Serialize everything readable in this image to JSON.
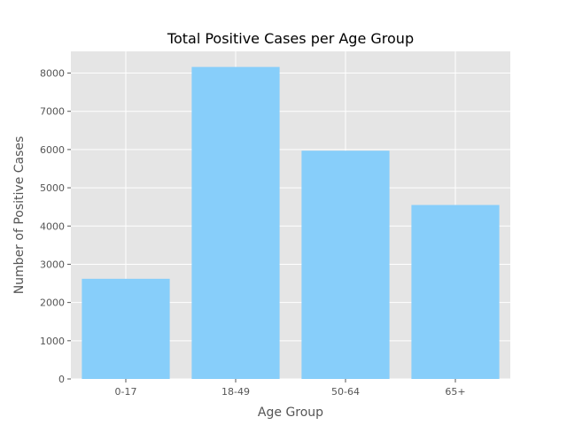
{
  "chart_data": {
    "type": "bar",
    "title": "Total Positive Cases per Age Group",
    "xlabel": "Age Group",
    "ylabel": "Number of Positive Cases",
    "categories": [
      "0-17",
      "18-49",
      "50-64",
      "65+"
    ],
    "values": [
      2620,
      8160,
      5970,
      4550
    ],
    "ylim": [
      0,
      8568
    ],
    "yticks": [
      0,
      1000,
      2000,
      3000,
      4000,
      5000,
      6000,
      7000,
      8000
    ],
    "grid": true,
    "bar_color": "#87CEFA",
    "plot_background": "#E5E5E5",
    "grid_color": "#FFFFFF",
    "tick_color": "#555555"
  }
}
